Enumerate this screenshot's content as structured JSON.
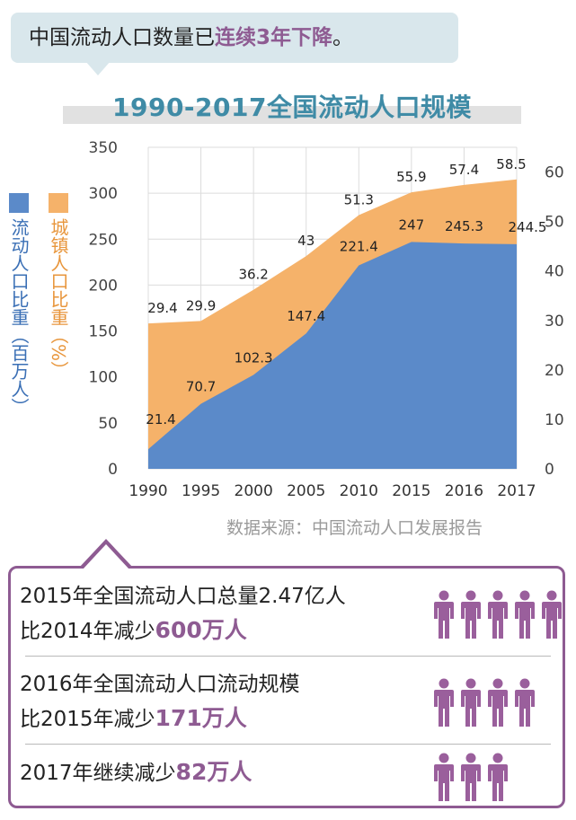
{
  "headline": {
    "prefix": "中国流动人口数量已",
    "highlight": "连续3年下降",
    "suffix": "。"
  },
  "colors": {
    "population_area": "#5b8ac9",
    "urbanization_area": "#f5b26a",
    "accent": "#8e5b92",
    "title": "#3f8ba6"
  },
  "chart_data": {
    "type": "area",
    "title": "1990-2017全国流动人口规模",
    "categories": [
      "1990",
      "1995",
      "2000",
      "2005",
      "2010",
      "2015",
      "2016",
      "2017"
    ],
    "series": [
      {
        "name": "流动人口比重（百万人）",
        "axis": "left",
        "values": [
          21.4,
          70.7,
          102.3,
          147.4,
          221.4,
          247,
          245.3,
          244.5
        ],
        "labels": [
          "21.4",
          "70.7",
          "102.3",
          "147.4",
          "221.4",
          "247",
          "245.3",
          "244.5"
        ]
      },
      {
        "name": "城镇人口比重（%）",
        "axis": "right",
        "values": [
          29.4,
          29.9,
          36.2,
          43,
          51.3,
          55.9,
          57.4,
          58.5
        ],
        "labels": [
          "29.4",
          "29.9",
          "36.2",
          "43",
          "51.3",
          "55.9",
          "57.4",
          "58.5"
        ]
      }
    ],
    "ylim_left": [
      0,
      350
    ],
    "yticks_left": [
      "0",
      "50",
      "100",
      "150",
      "200",
      "250",
      "300",
      "350"
    ],
    "ylim_right": [
      0,
      65
    ],
    "yticks_right": [
      "0",
      "10",
      "20",
      "30",
      "40",
      "50",
      "60"
    ],
    "grid": true,
    "legend": "left"
  },
  "source": "数据来源：中国流动人口发展报告",
  "info": {
    "rows": [
      {
        "line1": "2015年全国流动人口总量2.47亿人",
        "line2_prefix": "比2014年减少",
        "line2_highlight": "600万人",
        "people": 5
      },
      {
        "line1": "2016年全国流动人口流动规模",
        "line2_prefix": "比2015年减少",
        "line2_highlight": "171万人",
        "people": 4
      },
      {
        "line1_prefix": "2017年继续减少",
        "line1_highlight": "82万人",
        "people": 3
      }
    ]
  }
}
